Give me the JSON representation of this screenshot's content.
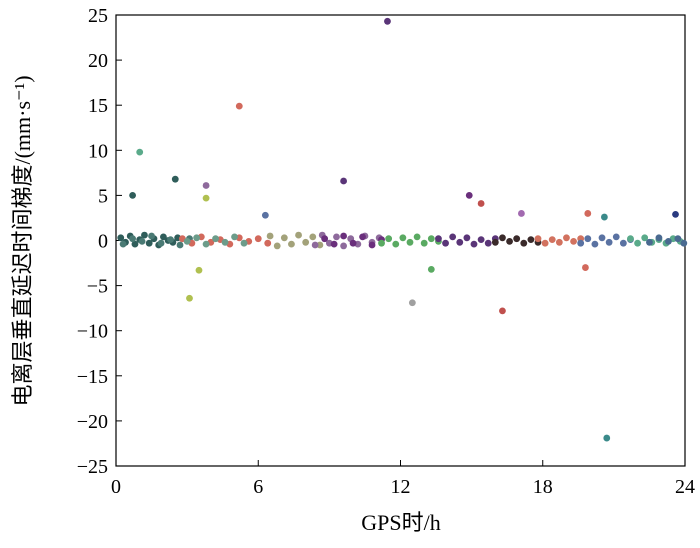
{
  "chart_data": {
    "type": "scatter",
    "title": "",
    "xlabel": "GPS时/h",
    "ylabel": "电离层垂直延迟时间梯度/(mm·s⁻¹)",
    "xlim": [
      0,
      24
    ],
    "ylim": [
      -25,
      25
    ],
    "xticks": [
      0,
      6,
      12,
      18,
      24
    ],
    "yticks": [
      -25,
      -20,
      -15,
      -10,
      -5,
      0,
      5,
      10,
      15,
      20,
      25
    ],
    "xtick_labels": [
      "0",
      "6",
      "12",
      "18",
      "24"
    ],
    "ytick_labels": [
      "−25",
      "−20",
      "−15",
      "−10",
      "−5",
      "0",
      "5",
      "10",
      "15",
      "20",
      "25"
    ],
    "grid": false,
    "legend": "none",
    "series": [
      {
        "color": "#2f5d5a",
        "x": [
          0.2,
          0.4,
          0.6,
          0.8,
          1.0,
          1.2,
          1.4,
          1.6,
          1.8,
          2.0,
          2.2,
          2.4,
          2.6
        ],
        "y": [
          0.3,
          -0.2,
          0.5,
          -0.4,
          0.1,
          0.6,
          -0.3,
          0.2,
          -0.5,
          0.4,
          0.0,
          -0.2,
          0.3
        ]
      },
      {
        "color": "#4a7a74",
        "x": [
          0.3,
          0.7,
          1.1,
          1.5,
          1.9,
          2.3,
          2.7,
          3.1
        ],
        "y": [
          -0.4,
          0.2,
          -0.1,
          0.5,
          -0.3,
          0.1,
          -0.5,
          0.2
        ]
      },
      {
        "color": "#d2695c",
        "x": [
          2.8,
          3.2,
          3.6,
          4.0,
          4.4,
          4.8,
          5.2,
          5.6,
          6.0,
          6.4
        ],
        "y": [
          0.2,
          -0.3,
          0.4,
          -0.2,
          0.1,
          -0.4,
          0.3,
          -0.1,
          0.2,
          -0.3
        ]
      },
      {
        "color": "#6c9c8a",
        "x": [
          3.0,
          3.4,
          3.8,
          4.2,
          4.6,
          5.0,
          5.4
        ],
        "y": [
          -0.1,
          0.3,
          -0.4,
          0.2,
          -0.2,
          0.4,
          -0.3
        ]
      },
      {
        "color": "#a3a27a",
        "x": [
          6.5,
          6.8,
          7.1,
          7.4,
          7.7,
          8.0,
          8.3,
          8.6
        ],
        "y": [
          0.5,
          -0.6,
          0.3,
          -0.4,
          0.6,
          -0.2,
          0.4,
          -0.5
        ]
      },
      {
        "color": "#8e6a9c",
        "x": [
          8.4,
          8.7,
          9.0,
          9.3,
          9.6,
          9.9,
          10.2,
          10.5,
          10.8,
          11.1
        ],
        "y": [
          -0.5,
          0.6,
          -0.3,
          0.4,
          -0.6,
          0.2,
          -0.4,
          0.5,
          -0.2,
          0.3
        ]
      },
      {
        "color": "#6a2f7c",
        "x": [
          8.8,
          9.2,
          9.6,
          10.0,
          10.4,
          10.8,
          11.2
        ],
        "y": [
          0.2,
          -0.4,
          0.5,
          -0.3,
          0.4,
          -0.5,
          0.1
        ]
      },
      {
        "color": "#5aaa62",
        "x": [
          11.2,
          11.5,
          11.8,
          12.1,
          12.4,
          12.7,
          13.0,
          13.3,
          13.6
        ],
        "y": [
          -0.3,
          0.2,
          -0.4,
          0.3,
          -0.2,
          0.4,
          -0.3,
          0.2,
          -0.1
        ]
      },
      {
        "color": "#5a3578",
        "x": [
          13.6,
          13.9,
          14.2,
          14.5,
          14.8,
          15.1,
          15.4,
          15.7,
          16.0
        ],
        "y": [
          0.2,
          -0.3,
          0.4,
          -0.2,
          0.3,
          -0.4,
          0.1,
          -0.3,
          0.2
        ]
      },
      {
        "color": "#3a2a2a",
        "x": [
          16.0,
          16.3,
          16.6,
          16.9,
          17.2,
          17.5,
          17.8
        ],
        "y": [
          -0.2,
          0.3,
          -0.1,
          0.2,
          -0.3,
          0.1,
          -0.2
        ]
      },
      {
        "color": "#d2725f",
        "x": [
          17.8,
          18.1,
          18.4,
          18.7,
          19.0,
          19.3,
          19.6
        ],
        "y": [
          0.2,
          -0.3,
          0.1,
          -0.2,
          0.3,
          -0.1,
          0.2
        ]
      },
      {
        "color": "#5a72a2",
        "x": [
          19.6,
          19.9,
          20.2,
          20.5,
          20.8,
          21.1,
          21.4,
          21.7
        ],
        "y": [
          -0.3,
          0.2,
          -0.4,
          0.3,
          -0.2,
          0.4,
          -0.3,
          0.1
        ]
      },
      {
        "color": "#5aaa8a",
        "x": [
          21.7,
          22.0,
          22.3,
          22.6,
          22.9,
          23.2,
          23.5,
          23.8
        ],
        "y": [
          0.2,
          -0.3,
          0.3,
          -0.2,
          0.1,
          -0.3,
          0.2,
          -0.1
        ]
      },
      {
        "color": "#4a6a90",
        "x": [
          22.5,
          22.9,
          23.3,
          23.7,
          23.95
        ],
        "y": [
          -0.2,
          0.3,
          -0.1,
          0.2,
          -0.3
        ]
      },
      {
        "color": "#5a3578",
        "x": [
          11.45
        ],
        "y": [
          24.3
        ]
      },
      {
        "color": "#d2695c",
        "x": [
          5.2
        ],
        "y": [
          14.9
        ]
      },
      {
        "color": "#5aaa8a",
        "x": [
          1.0
        ],
        "y": [
          9.8
        ]
      },
      {
        "color": "#2f5d5a",
        "x": [
          2.5
        ],
        "y": [
          6.8
        ]
      },
      {
        "color": "#5a3578",
        "x": [
          9.6
        ],
        "y": [
          6.6
        ]
      },
      {
        "color": "#8e6a9c",
        "x": [
          3.8
        ],
        "y": [
          6.1
        ]
      },
      {
        "color": "#2f5d5a",
        "x": [
          0.7
        ],
        "y": [
          5.0
        ]
      },
      {
        "color": "#b0c050",
        "x": [
          3.8
        ],
        "y": [
          4.7
        ]
      },
      {
        "color": "#6a2f7c",
        "x": [
          14.9
        ],
        "y": [
          5.0
        ]
      },
      {
        "color": "#c0504d",
        "x": [
          15.4
        ],
        "y": [
          4.1
        ]
      },
      {
        "color": "#a26ab0",
        "x": [
          17.1
        ],
        "y": [
          3.0
        ]
      },
      {
        "color": "#d2695c",
        "x": [
          19.9
        ],
        "y": [
          3.0
        ]
      },
      {
        "color": "#5a72a2",
        "x": [
          6.3
        ],
        "y": [
          2.8
        ]
      },
      {
        "color": "#2a3a80",
        "x": [
          23.6
        ],
        "y": [
          2.9
        ]
      },
      {
        "color": "#3a8a8a",
        "x": [
          20.6
        ],
        "y": [
          2.6
        ]
      },
      {
        "color": "#a0a0a0",
        "x": [
          12.5
        ],
        "y": [
          -6.9
        ]
      },
      {
        "color": "#c0504d",
        "x": [
          16.3
        ],
        "y": [
          -7.8
        ]
      },
      {
        "color": "#b0c050",
        "x": [
          3.1
        ],
        "y": [
          -6.4
        ]
      },
      {
        "color": "#b0c050",
        "x": [
          3.5
        ],
        "y": [
          -3.3
        ]
      },
      {
        "color": "#5aaa62",
        "x": [
          13.3
        ],
        "y": [
          -3.2
        ]
      },
      {
        "color": "#d2695c",
        "x": [
          19.8
        ],
        "y": [
          -3.0
        ]
      },
      {
        "color": "#3a8a8a",
        "x": [
          20.7
        ],
        "y": [
          -21.9
        ]
      }
    ]
  }
}
